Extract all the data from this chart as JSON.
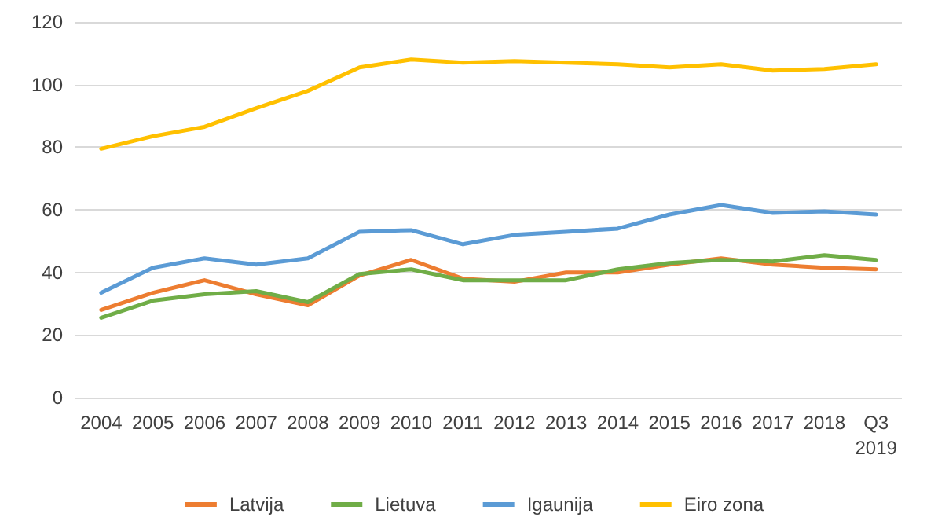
{
  "chart_data": {
    "type": "line",
    "categories": [
      "2004",
      "2005",
      "2006",
      "2007",
      "2008",
      "2009",
      "2010",
      "2011",
      "2012",
      "2013",
      "2014",
      "2015",
      "2016",
      "2017",
      "2018",
      "Q3\n2019"
    ],
    "series": [
      {
        "name": "Latvija",
        "color": "#ed7d31",
        "values": [
          28,
          33.5,
          37.5,
          33,
          29.5,
          39,
          44,
          38,
          37,
          40,
          40,
          42.5,
          44.5,
          42.5,
          41.5,
          41
        ]
      },
      {
        "name": "Lietuva",
        "color": "#70ad47",
        "values": [
          25.5,
          31,
          33,
          34,
          30.5,
          39.5,
          41,
          37.5,
          37.5,
          37.5,
          41,
          43,
          44,
          43.5,
          45.5,
          44
        ]
      },
      {
        "name": "Igaunija",
        "color": "#5b9bd5",
        "values": [
          33.5,
          41.5,
          44.5,
          42.5,
          44.5,
          53,
          53.5,
          49,
          52,
          53,
          54,
          58.5,
          61.5,
          59,
          59.5,
          58.5
        ]
      },
      {
        "name": "Eiro zona",
        "color": "#ffc000",
        "values": [
          79.5,
          83.5,
          86.5,
          92.5,
          98,
          105.5,
          108,
          107,
          107.5,
          107,
          106.5,
          105.5,
          106.5,
          104.5,
          105,
          106.5
        ]
      }
    ],
    "ylim": [
      0,
      120
    ],
    "yticks": [
      0,
      20,
      40,
      60,
      80,
      100,
      120
    ],
    "grid": "y",
    "legend": "bottom",
    "marker": "none",
    "line_style": "solid"
  }
}
